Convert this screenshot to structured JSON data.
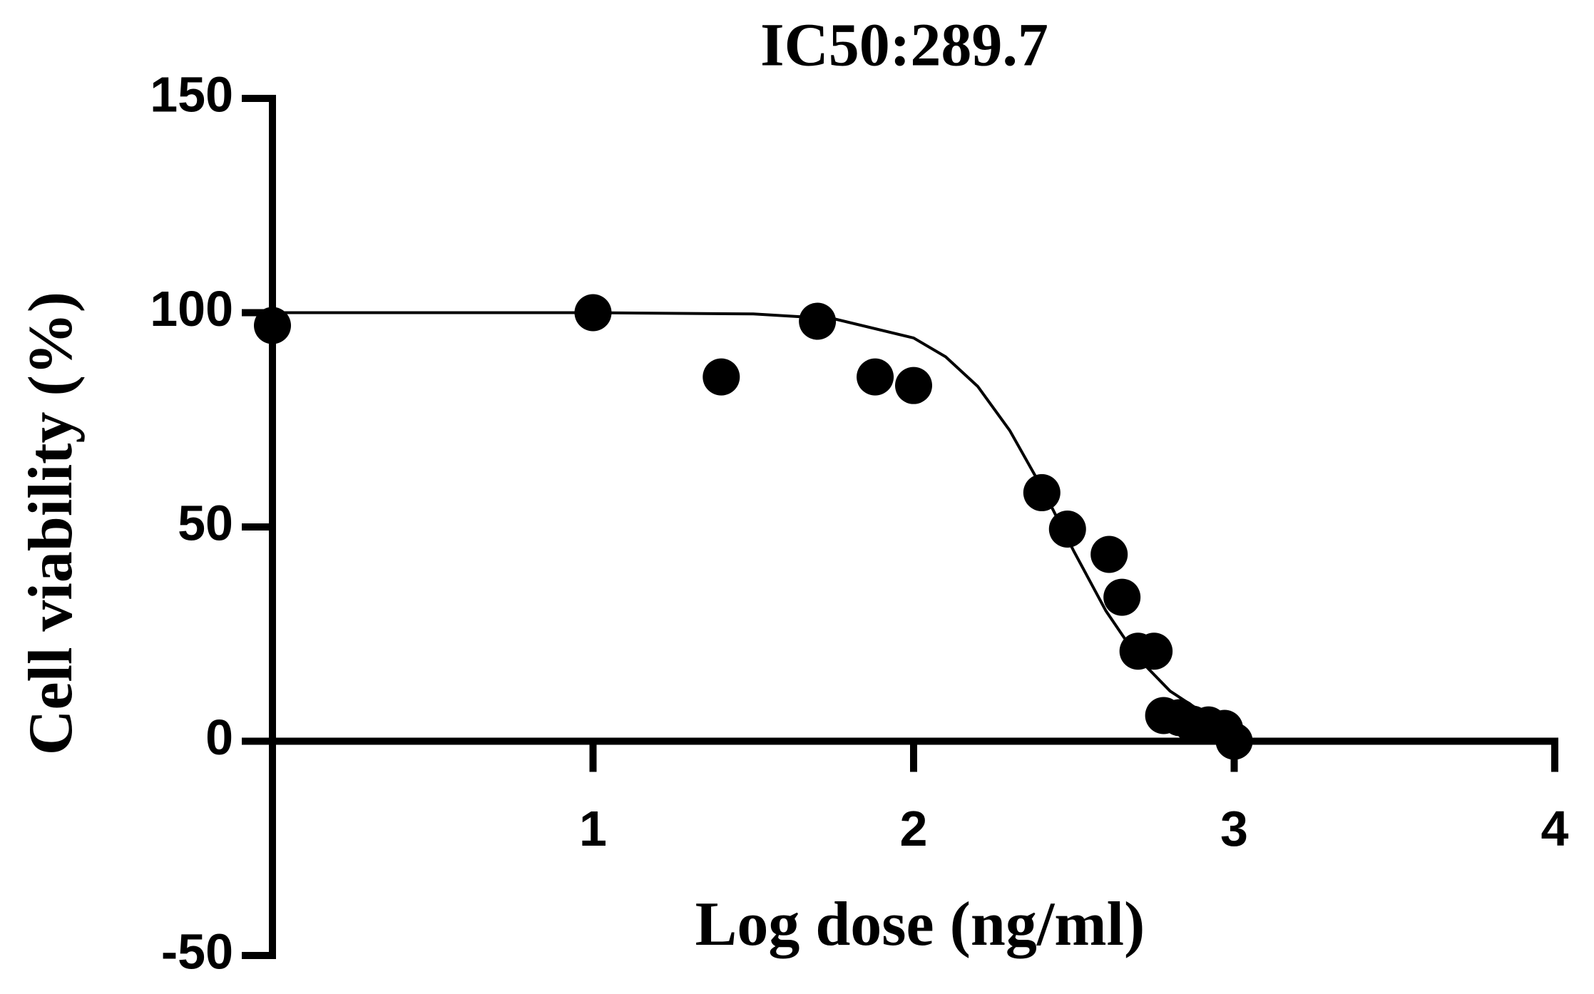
{
  "chart_data": {
    "type": "scatter",
    "title": "IC50:289.7",
    "x_label": "Log dose (ng/ml)",
    "y_label": "Cell viability (%)",
    "x": [
      0,
      1,
      1.4,
      1.7,
      1.88,
      2.0,
      2.4,
      2.48,
      2.61,
      2.65,
      2.7,
      2.75,
      2.78,
      2.83,
      2.87,
      2.92,
      2.97,
      3.0
    ],
    "values": [
      97,
      100,
      85,
      98,
      85,
      83,
      58,
      49.5,
      43.6,
      33.6,
      21,
      21,
      6,
      5.5,
      4,
      3.8,
      3,
      0
    ],
    "color": "#000000",
    "curve": {
      "x": [
        0,
        0.5,
        1,
        1.5,
        1.75,
        2,
        2.1,
        2.2,
        2.3,
        2.4,
        2.5,
        2.6,
        2.7,
        2.8,
        2.9,
        3
      ],
      "values": [
        100,
        100,
        100,
        99.7,
        98.6,
        94.1,
        89.7,
        82.8,
        72.5,
        59.2,
        44.3,
        30.4,
        19.4,
        11.7,
        6.8,
        3.8
      ]
    },
    "xlim": [
      0,
      4
    ],
    "xticks": [
      1,
      2,
      3,
      4
    ],
    "ylim": [
      -50,
      150
    ],
    "yticks": [
      -50,
      0,
      50,
      100,
      150
    ]
  }
}
